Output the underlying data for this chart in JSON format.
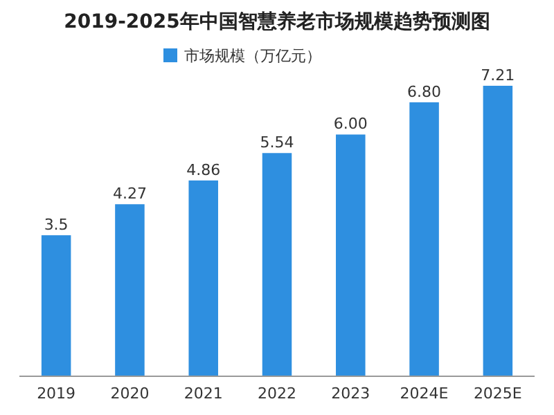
{
  "chart_data": {
    "type": "bar",
    "title": "2019-2025年中国智慧养老市场规模趋势预测图",
    "categories": [
      "2019",
      "2020",
      "2021",
      "2022",
      "2023",
      "2024E",
      "2025E"
    ],
    "series": [
      {
        "name": "市场规模（万亿元）",
        "color": "#2e8fe0",
        "values": [
          3.5,
          4.27,
          4.86,
          5.54,
          6.0,
          6.8,
          7.21
        ],
        "value_labels": [
          "3.5",
          "4.27",
          "4.86",
          "5.54",
          "6.00",
          "6.80",
          "7.21"
        ]
      }
    ],
    "legend": "top"
  }
}
